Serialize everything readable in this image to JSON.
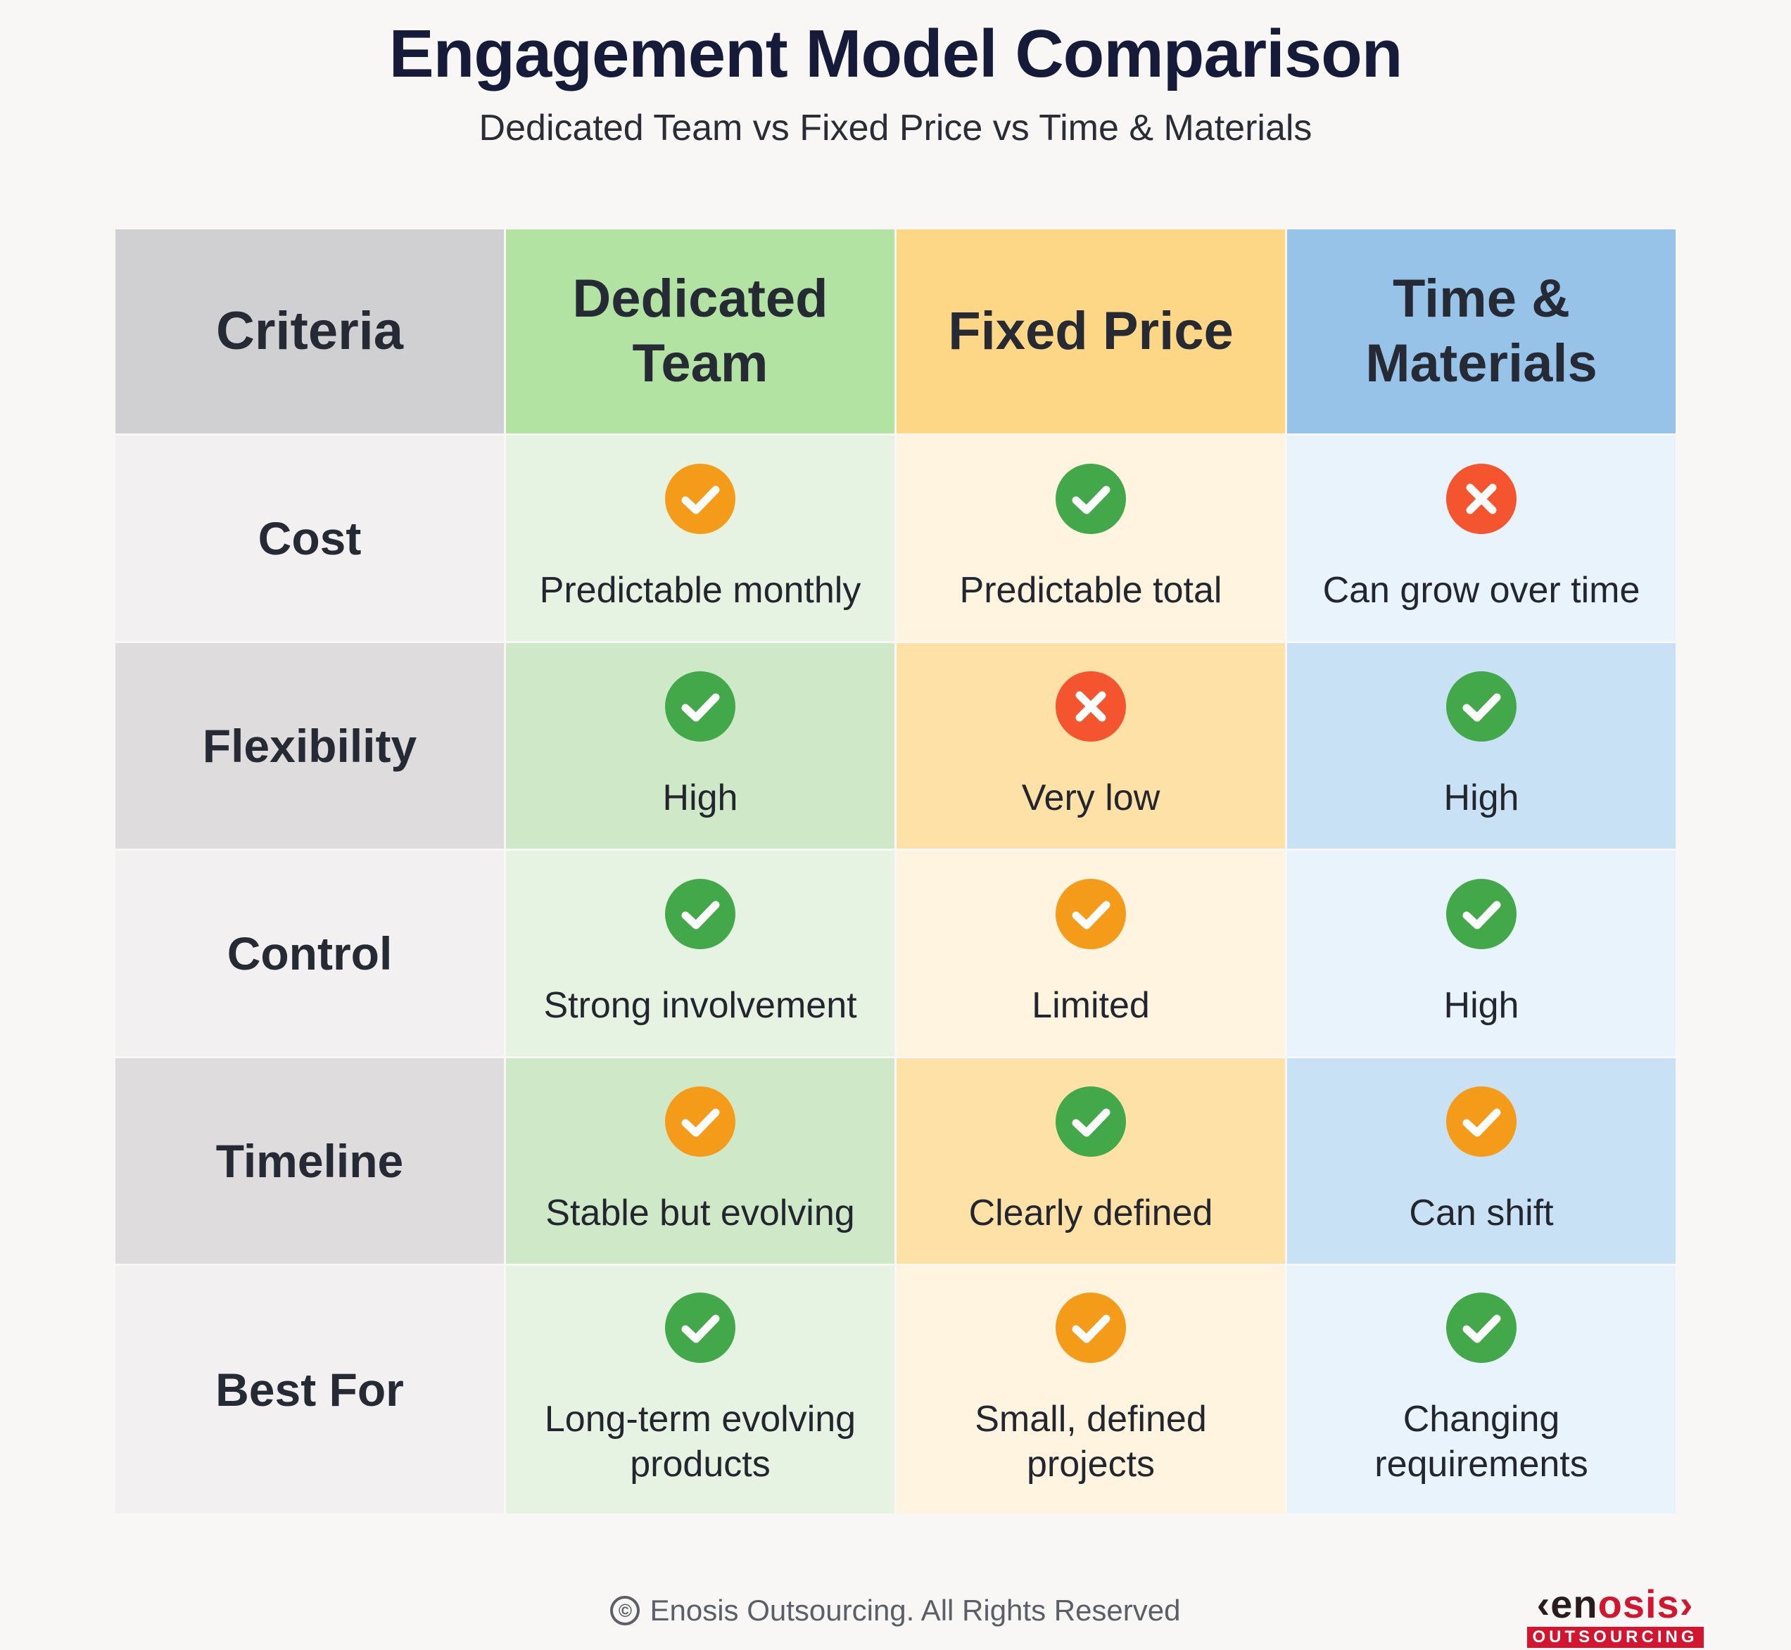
{
  "title": "Engagement Model Comparison",
  "subtitle": "Dedicated Team vs Fixed Price vs Time & Materials",
  "headers": [
    {
      "label": "Criteria",
      "bg": "#d0d0d2"
    },
    {
      "label": "Dedicated Team",
      "bg": "#b3e3a2"
    },
    {
      "label": "Fixed Price",
      "bg": "#fdd785"
    },
    {
      "label": "Time & Materials",
      "bg": "#98c3e8"
    }
  ],
  "rows": [
    {
      "criteria": "Cost",
      "cells": [
        {
          "status": "check-orange",
          "text": "Predictable monthly"
        },
        {
          "status": "check-green",
          "text": "Predictable total"
        },
        {
          "status": "cross-red",
          "text": "Can grow over time"
        }
      ]
    },
    {
      "criteria": "Flexibility",
      "cells": [
        {
          "status": "check-green",
          "text": "High"
        },
        {
          "status": "cross-red",
          "text": "Very low"
        },
        {
          "status": "check-green",
          "text": "High"
        }
      ]
    },
    {
      "criteria": "Control",
      "cells": [
        {
          "status": "check-green",
          "text": "Strong involvement"
        },
        {
          "status": "check-orange",
          "text": "Limited"
        },
        {
          "status": "check-green",
          "text": "High"
        }
      ]
    },
    {
      "criteria": "Timeline",
      "cells": [
        {
          "status": "check-orange",
          "text": "Stable but evolving"
        },
        {
          "status": "check-green",
          "text": "Clearly defined"
        },
        {
          "status": "check-orange",
          "text": "Can shift"
        }
      ]
    },
    {
      "criteria": "Best For",
      "cells": [
        {
          "status": "check-green",
          "text": "Long-term evolving products"
        },
        {
          "status": "check-orange",
          "text": "Small, defined projects"
        },
        {
          "status": "check-green",
          "text": "Changing requirements"
        }
      ]
    }
  ],
  "row_colors": {
    "light": [
      "#f2f0f1",
      "#e6f3e2",
      "#fef4e0",
      "#e9f3fb"
    ],
    "dark": [
      "#dedcdd",
      "#cfe9c8",
      "#fde1a6",
      "#c9e1f5"
    ]
  },
  "status_colors": {
    "check-green": "#43a84a",
    "check-orange": "#f49c1a",
    "cross-red": "#f4552f"
  },
  "footer": {
    "copyright_icon": "©",
    "text": "Enosis Outsourcing. All Rights Reserved"
  },
  "logo": {
    "main_prefix": "‹en",
    "main_accent": "osis›",
    "sub": "OUTSOURCING"
  }
}
